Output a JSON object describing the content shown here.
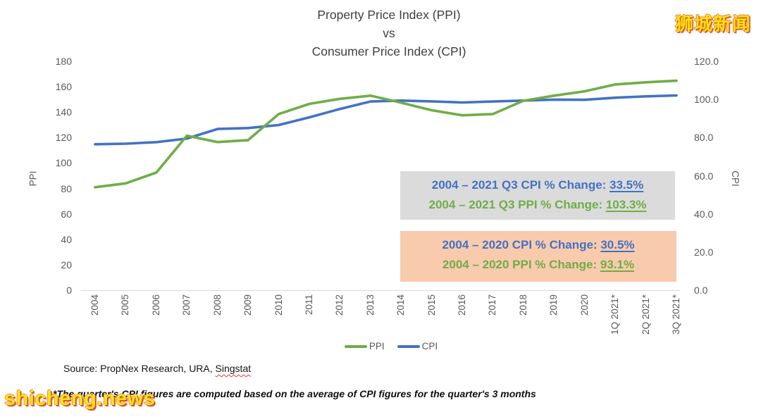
{
  "title": {
    "line1": "Property Price Index (PPI)",
    "line2": "vs",
    "line3": "Consumer Price Index (CPI)"
  },
  "branding": {
    "logo_text": "狮城新闻",
    "watermark_text": "shicheng.news"
  },
  "colors": {
    "ppi_green": "#70AD47",
    "cpi_blue": "#4472C4",
    "gray_box_bg": "#DBDBDB",
    "orange_box_bg": "#F8CBAD"
  },
  "chart_data": {
    "type": "line",
    "title": "Property Price Index (PPI) vs Consumer Price Index (CPI)",
    "grid": false,
    "legend_position": "bottom",
    "categories": [
      "2004",
      "2005",
      "2006",
      "2007",
      "2008",
      "2009",
      "2010",
      "2011",
      "2012",
      "2013",
      "2014",
      "2015",
      "2016",
      "2017",
      "2018",
      "2019",
      "2020",
      "1Q 2021*",
      "2Q 2021*",
      "3Q 2021*"
    ],
    "series": [
      {
        "name": "CPI",
        "axis": "right",
        "color": "#4472C4",
        "values": [
          76.5,
          76.8,
          77.6,
          79.5,
          84.5,
          85.0,
          86.6,
          90.6,
          95.0,
          98.9,
          99.4,
          99.0,
          98.4,
          98.9,
          99.4,
          99.9,
          99.8,
          100.9,
          101.6,
          102.1
        ]
      },
      {
        "name": "PPI",
        "axis": "left",
        "color": "#70AD47",
        "values": [
          81,
          84,
          92.5,
          121.5,
          116.5,
          118,
          138.5,
          146.5,
          150.5,
          153,
          147.5,
          141.5,
          137.5,
          138.5,
          149,
          153,
          156.4,
          161.8,
          163.5,
          164.7
        ]
      }
    ],
    "left_axis": {
      "label": "PPI",
      "min": 0,
      "max": 180,
      "ticks": [
        "180",
        "160",
        "140",
        "120",
        "100",
        "80",
        "60",
        "40",
        "20",
        "0"
      ]
    },
    "right_axis": {
      "label": "CPI",
      "min": 0,
      "max": 120,
      "ticks": [
        "120.0",
        "100.0",
        "80.0",
        "60.0",
        "40.0",
        "20.0",
        "0.0"
      ]
    },
    "legend": [
      {
        "label": "PPI",
        "color": "#70AD47"
      },
      {
        "label": "CPI",
        "color": "#4472C4"
      }
    ]
  },
  "annotations": {
    "box1": {
      "line1_label": "2004 – 2021 Q3 CPI % Change: ",
      "line1_value": "33.5%",
      "line2_label": "2004 – 2021 Q3 PPI % Change: ",
      "line2_value": "103.3%"
    },
    "box2": {
      "line1_label": "2004 – 2020 CPI % Change: ",
      "line1_value": "30.5%",
      "line2_label": "2004 – 2020 PPI % Change: ",
      "line2_value": "93.1%"
    }
  },
  "footer": {
    "source_prefix": "Source: PropNex Research, URA, ",
    "source_last_word": "Singstat",
    "footnote": "*The quarter's CPI figures are computed based on the average of CPI figures for the quarter's 3 months"
  }
}
